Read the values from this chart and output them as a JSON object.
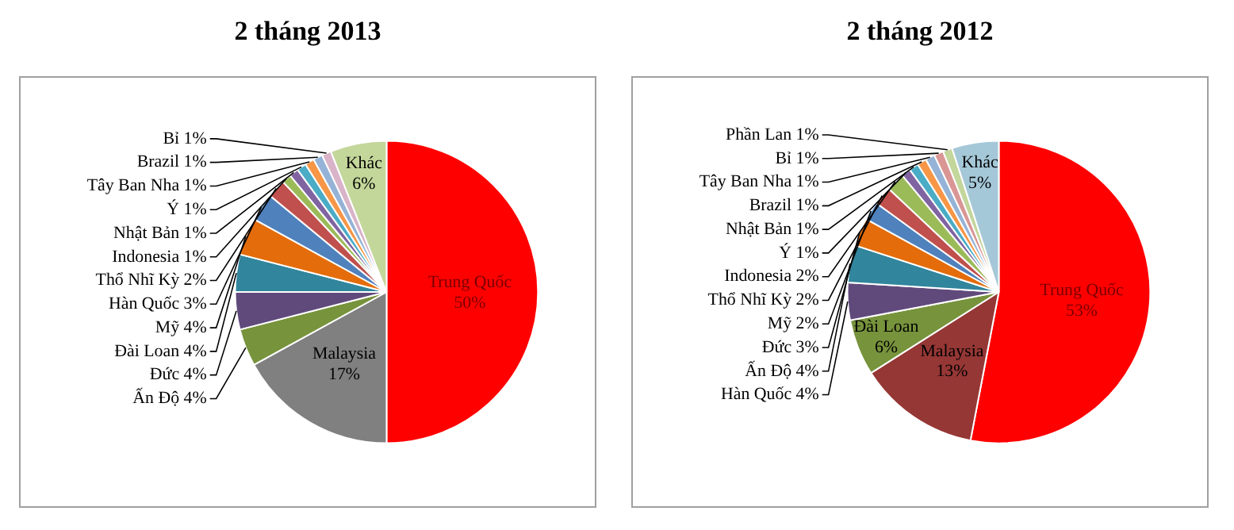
{
  "chart_data": [
    {
      "type": "pie",
      "title": "2 tháng 2013",
      "categories": [
        "Trung Quốc",
        "Malaysia",
        "Ấn Độ",
        "Đức",
        "Đài Loan",
        "Mỹ",
        "Hàn Quốc",
        "Thổ Nhĩ Kỳ",
        "Indonesia",
        "Nhật Bản",
        "Ý",
        "Tây Ban Nha",
        "Brazil",
        "Bỉ",
        "Khác"
      ],
      "values": [
        50,
        17,
        4,
        4,
        4,
        4,
        3,
        2,
        1,
        1,
        1,
        1,
        1,
        1,
        6
      ],
      "value_labels": [
        "50%",
        "17%",
        "4%",
        "4%",
        "4%",
        "4%",
        "3%",
        "2%",
        "1%",
        "1%",
        "1%",
        "1%",
        "1%",
        "1%",
        "6%"
      ],
      "colors": [
        "#ff0000",
        "#808080",
        "#77933c",
        "#604a7b",
        "#31859c",
        "#e46c0a",
        "#4f81bd",
        "#c0504d",
        "#9bbb59",
        "#8064a2",
        "#4bacc6",
        "#f79646",
        "#95b3d7",
        "#d9b3c8",
        "#c4d79b"
      ]
    },
    {
      "type": "pie",
      "title": "2 tháng 2012",
      "categories": [
        "Trung Quốc",
        "Malaysia",
        "Đài Loan",
        "Hàn Quốc",
        "Ấn Độ",
        "Đức",
        "Mỹ",
        "Thổ Nhĩ Kỳ",
        "Indonesia",
        "Ý",
        "Nhật Bản",
        "Brazil",
        "Tây Ban Nha",
        "Bỉ",
        "Phần Lan",
        "Khác"
      ],
      "values": [
        53,
        13,
        6,
        4,
        4,
        3,
        2,
        2,
        2,
        1,
        1,
        1,
        1,
        1,
        1,
        5
      ],
      "value_labels": [
        "53%",
        "13%",
        "6%",
        "4%",
        "4%",
        "3%",
        "2%",
        "2%",
        "2%",
        "1%",
        "1%",
        "1%",
        "1%",
        "1%",
        "1%",
        "5%"
      ],
      "colors": [
        "#ff0000",
        "#953735",
        "#77933c",
        "#604a7b",
        "#31859c",
        "#e46c0a",
        "#4f81bd",
        "#c0504d",
        "#9bbb59",
        "#8064a2",
        "#4bacc6",
        "#f79646",
        "#95b3d7",
        "#d99694",
        "#c3d69b",
        "#a5c8d8"
      ]
    }
  ]
}
